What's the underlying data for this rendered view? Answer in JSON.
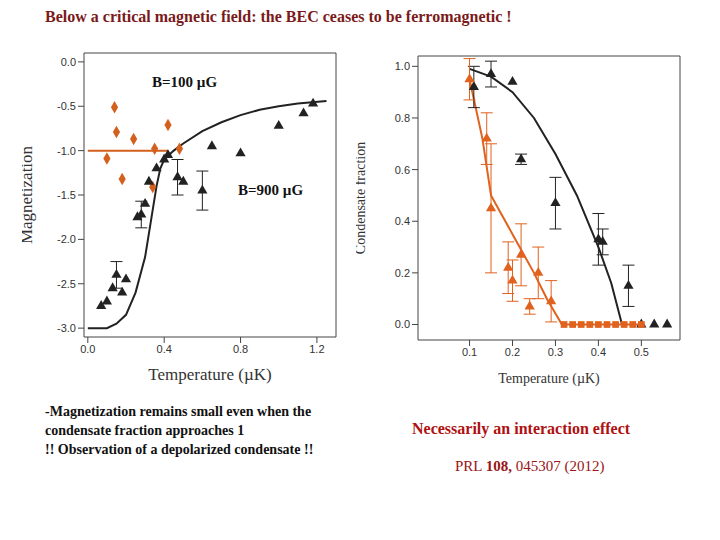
{
  "title": "Below a critical magnetic field: the BEC ceases to be ferromagnetic !",
  "notes": [
    "-Magnetization remains small even when the condensate fraction approaches 1",
    "!! Observation of a depolarized condensate !!"
  ],
  "conclusion": "Necessarily an interaction effect",
  "reference": "PRL 108, 045307 (2012)",
  "chart_data": [
    {
      "type": "scatter",
      "x_label": "Temperature (µK)",
      "y_label": "Magnetization",
      "annotations": [
        "B=100 µG",
        "B=900 µG"
      ],
      "xlim": [
        -0.02,
        1.3
      ],
      "ylim": [
        -3.1,
        0.1
      ],
      "xticks": [
        {
          "value": 0,
          "label": "0.0"
        },
        0.4,
        0.8,
        1.2
      ],
      "yticks": [
        {
          "value": 0,
          "label": "0.0"
        },
        -0.5,
        {
          "value": -1,
          "label": "-1.0"
        },
        -1.5,
        {
          "value": -2,
          "label": "-2.0"
        },
        -2.5,
        {
          "value": -3,
          "label": "-3.0"
        }
      ],
      "grid": false,
      "series": [
        {
          "type": "line",
          "color": "#d4601e",
          "line_style": "solid",
          "x": [
            0.0,
            0.42
          ],
          "values": [
            -1.0,
            -1.0
          ]
        },
        {
          "type": "line",
          "color": "#222222",
          "line_style": "solid",
          "x": [
            0.0,
            0.1,
            0.15,
            0.2,
            0.25,
            0.3,
            0.33,
            0.36,
            0.38,
            0.4,
            0.45,
            0.5,
            0.6,
            0.7,
            0.8,
            0.9,
            1.0,
            1.1,
            1.25
          ],
          "values": [
            -3.0,
            -3.0,
            -2.95,
            -2.85,
            -2.6,
            -2.2,
            -1.8,
            -1.4,
            -1.2,
            -1.1,
            -1.0,
            -0.92,
            -0.78,
            -0.68,
            -0.6,
            -0.54,
            -0.5,
            -0.47,
            -0.44
          ]
        },
        {
          "type": "scatter",
          "color": "#d4601e",
          "marker": "diamond",
          "x": [
            0.14,
            0.15,
            0.24,
            0.1,
            0.18,
            0.34,
            0.42,
            0.48,
            0.35
          ],
          "values": [
            -0.51,
            -0.79,
            -0.87,
            -1.09,
            -1.32,
            -1.41,
            -0.71,
            -0.98,
            -0.98
          ]
        },
        {
          "type": "scatter",
          "color": "#222222",
          "marker": "triangle",
          "x": [
            0.07,
            0.1,
            0.13,
            0.15,
            0.18,
            0.2,
            0.26,
            0.28,
            0.3,
            0.32,
            0.36,
            0.4,
            0.42,
            0.47,
            0.5,
            0.6,
            0.65,
            0.8,
            1.0,
            1.13,
            1.18
          ],
          "values": [
            -2.75,
            -2.7,
            -2.55,
            -2.4,
            -2.6,
            -2.45,
            -1.75,
            -1.72,
            -1.6,
            -1.35,
            -1.2,
            -1.1,
            -1.05,
            -1.3,
            -1.35,
            -1.45,
            -0.95,
            -1.03,
            -0.72,
            -0.58,
            -0.47
          ],
          "errors": [
            null,
            null,
            null,
            0.15,
            null,
            null,
            null,
            0.15,
            null,
            null,
            null,
            null,
            null,
            0.2,
            null,
            0.22,
            null,
            null,
            null,
            null,
            null
          ]
        }
      ]
    },
    {
      "type": "scatter",
      "x_label": "Temperature (µK)",
      "y_label": "Condensate fraction",
      "xlim": [
        -0.02,
        0.59
      ],
      "ylim": [
        -0.06,
        1.04
      ],
      "xticks": [
        0.1,
        0.2,
        0.3,
        0.4,
        0.5
      ],
      "yticks": [
        {
          "value": 0,
          "label": "0.0"
        },
        0.2,
        0.4,
        0.6,
        0.8,
        {
          "value": 1,
          "label": "1.0"
        }
      ],
      "grid": false,
      "series": [
        {
          "type": "line",
          "color": "#222222",
          "line_style": "solid",
          "x": [
            0.1,
            0.15,
            0.2,
            0.25,
            0.3,
            0.35,
            0.4,
            0.43,
            0.455
          ],
          "values": [
            0.99,
            0.96,
            0.9,
            0.8,
            0.66,
            0.5,
            0.3,
            0.16,
            0.0
          ]
        },
        {
          "type": "line",
          "color": "#e0621e",
          "line_style": "solid",
          "x": [
            0.1,
            0.13,
            0.15,
            0.2,
            0.25,
            0.28,
            0.315,
            0.5
          ],
          "values": [
            0.95,
            0.72,
            0.5,
            0.35,
            0.2,
            0.1,
            0.0,
            0.0
          ]
        },
        {
          "type": "scatter",
          "color": "#222222",
          "marker": "triangle",
          "x": [
            0.11,
            0.15,
            0.2,
            0.22,
            0.3,
            0.4,
            0.41,
            0.47,
            0.5,
            0.53,
            0.56
          ],
          "values": [
            0.92,
            0.97,
            0.94,
            0.64,
            0.47,
            0.33,
            0.32,
            0.15,
            0.0,
            0.0,
            0.0
          ],
          "errors": [
            0.08,
            0.05,
            null,
            0.02,
            0.1,
            0.1,
            0.05,
            0.08,
            null,
            null,
            null
          ]
        },
        {
          "type": "scatter",
          "color": "#e0621e",
          "marker": "triangle",
          "x": [
            0.1,
            0.14,
            0.15,
            0.19,
            0.2,
            0.22,
            0.24,
            0.26,
            0.29
          ],
          "values": [
            0.95,
            0.72,
            0.45,
            0.22,
            0.17,
            0.27,
            0.07,
            0.2,
            0.09
          ],
          "errors": [
            0.08,
            0.1,
            0.25,
            0.1,
            0.08,
            0.12,
            0.03,
            0.1,
            0.08
          ]
        },
        {
          "type": "scatter",
          "color": "#e0621e",
          "marker": "square",
          "x": [
            0.32,
            0.34,
            0.36,
            0.38,
            0.4,
            0.42,
            0.44,
            0.46,
            0.48,
            0.5
          ],
          "values": [
            0.0,
            0.0,
            0.0,
            0.0,
            0.0,
            0.0,
            0.0,
            0.0,
            0.0,
            0.0
          ]
        }
      ]
    }
  ]
}
